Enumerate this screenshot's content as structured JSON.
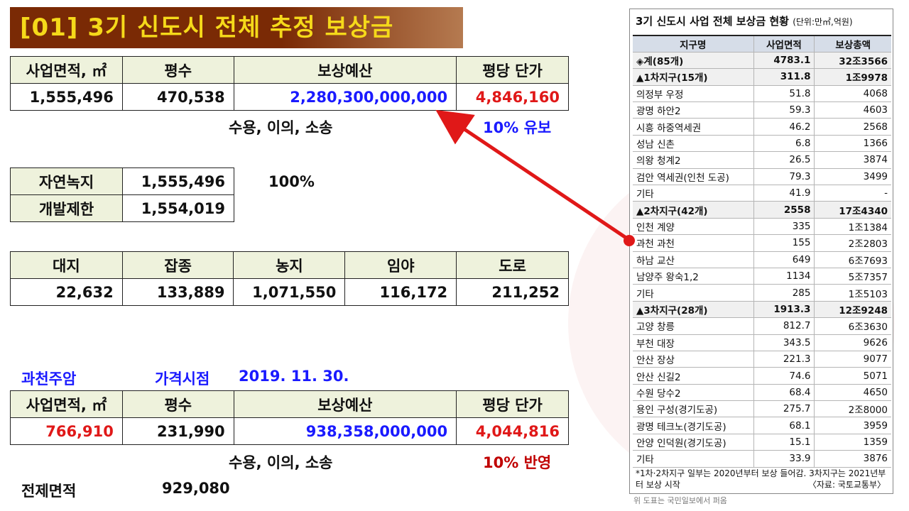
{
  "title": "[01] 3기 신도시 전체 추정 보상금",
  "table1": {
    "headers": [
      "사업면적, ㎡",
      "평수",
      "보상예산",
      "평당 단가"
    ],
    "values": [
      "1,555,496",
      "470,538",
      "2,280,300,000,000",
      "4,846,160"
    ]
  },
  "note1": "수용, 이의, 소송",
  "note1_right": "10% 유보",
  "table2": {
    "rows": [
      {
        "label": "자연녹지",
        "value": "1,555,496"
      },
      {
        "label": "개발제한",
        "value": "1,554,019"
      }
    ],
    "pct": "100%"
  },
  "table3": {
    "headers": [
      "대지",
      "잡종",
      "농지",
      "임야",
      "도로"
    ],
    "values": [
      "22,632",
      "133,889",
      "1,071,550",
      "116,172",
      "211,252"
    ]
  },
  "section2": {
    "place": "과천주암",
    "price_label": "가격시점",
    "price_date": "2019. 11. 30."
  },
  "table4": {
    "headers": [
      "사업면적, ㎡",
      "평수",
      "보상예산",
      "평당 단가"
    ],
    "values": [
      "766,910",
      "231,990",
      "938,358,000,000",
      "4,044,816"
    ]
  },
  "note2": "수용, 이의, 소송",
  "note2_right": "10% 반영",
  "total": {
    "label": "전제면적",
    "value": "929,080"
  },
  "panel": {
    "title": "3기 신도시 사업 전체 보상금 현황",
    "unit": "(단위:만㎡,억원)",
    "headers": [
      "지구명",
      "사업면적",
      "보상총액"
    ],
    "rows": [
      {
        "name": "◈계(85개)",
        "area": "4783.1",
        "total": "32조3566",
        "sub": true
      },
      {
        "name": "▲1차지구(15개)",
        "area": "311.8",
        "total": "1조9978",
        "sub": true
      },
      {
        "name": "의정부 우정",
        "area": "51.8",
        "total": "4068"
      },
      {
        "name": "광명 하안2",
        "area": "59.3",
        "total": "4603"
      },
      {
        "name": "시흥 하중역세권",
        "area": "46.2",
        "total": "2568"
      },
      {
        "name": "성남 신촌",
        "area": "6.8",
        "total": "1366"
      },
      {
        "name": "의왕 청계2",
        "area": "26.5",
        "total": "3874"
      },
      {
        "name": "검안 역세권(인천 도공)",
        "area": "79.3",
        "total": "3499"
      },
      {
        "name": "기타",
        "area": "41.9",
        "total": "-"
      },
      {
        "name": "▲2차지구(42개)",
        "area": "2558",
        "total": "17조4340",
        "sub": true
      },
      {
        "name": "인천 계양",
        "area": "335",
        "total": "1조1384"
      },
      {
        "name": "과천 과천",
        "area": "155",
        "total": "2조2803"
      },
      {
        "name": "하남 교산",
        "area": "649",
        "total": "6조7693"
      },
      {
        "name": "남양주 왕숙1,2",
        "area": "1134",
        "total": "5조7357"
      },
      {
        "name": "기타",
        "area": "285",
        "total": "1조5103"
      },
      {
        "name": "▲3차지구(28개)",
        "area": "1913.3",
        "total": "12조9248",
        "sub": true
      },
      {
        "name": "고양 창릉",
        "area": "812.7",
        "total": "6조3630"
      },
      {
        "name": "부천 대장",
        "area": "343.5",
        "total": "9626"
      },
      {
        "name": "안산 장상",
        "area": "221.3",
        "total": "9077"
      },
      {
        "name": "안산 신길2",
        "area": "74.6",
        "total": "5071"
      },
      {
        "name": "수원 당수2",
        "area": "68.4",
        "total": "4650"
      },
      {
        "name": "용인 구성(경기도공)",
        "area": "275.7",
        "total": "2조8000"
      },
      {
        "name": "광명 테크노(경기도공)",
        "area": "68.1",
        "total": "3959"
      },
      {
        "name": "안양 인덕원(경기도공)",
        "area": "15.1",
        "total": "1359"
      },
      {
        "name": "기타",
        "area": "33.9",
        "total": "3876"
      }
    ],
    "footnote": "*1차·2차지구 일부는 2020년부터 보상 들어감. 3차지구는 2021년부터 보상 시작",
    "source": "〈자료: 국토교통부〉",
    "below": "위 도표는 국민일보에서 퍼옴"
  },
  "colors": {
    "title_bg": "#7a2a05",
    "title_fg": "#f5d91a",
    "arrow": "#e01818",
    "header_bg": "#eef2dc"
  }
}
